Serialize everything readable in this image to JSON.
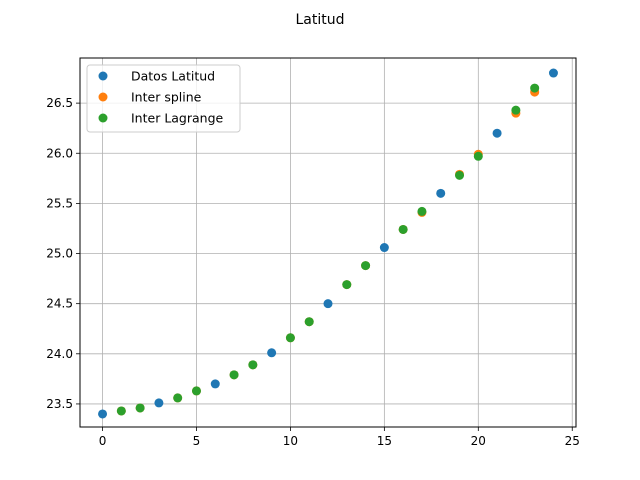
{
  "chart_data": {
    "type": "scatter",
    "title": "Latitud",
    "xlabel": "",
    "ylabel": "",
    "xlim": [
      -1.2,
      25.2
    ],
    "ylim": [
      23.27,
      26.95
    ],
    "xticks": [
      0,
      5,
      10,
      15,
      20,
      25
    ],
    "yticks": [
      23.5,
      24.0,
      24.5,
      25.0,
      25.5,
      26.0,
      26.5
    ],
    "ytick_labels": [
      "23.5",
      "24.0",
      "24.5",
      "25.0",
      "25.5",
      "26.0",
      "26.5"
    ],
    "grid": true,
    "legend_position": "top-left",
    "series": [
      {
        "name": "Datos Latitud",
        "color": "#1f77b4",
        "x": [
          0,
          3,
          6,
          9,
          12,
          15,
          18,
          21,
          24
        ],
        "y": [
          23.4,
          23.51,
          23.7,
          24.01,
          24.5,
          25.06,
          25.6,
          26.2,
          26.8
        ]
      },
      {
        "name": "Inter spline",
        "color": "#ff7f0e",
        "x": [
          1,
          2,
          4,
          5,
          7,
          8,
          10,
          11,
          13,
          14,
          16,
          17,
          19,
          20,
          22,
          23
        ],
        "y": [
          23.43,
          23.46,
          23.56,
          23.63,
          23.79,
          23.89,
          24.16,
          24.32,
          24.69,
          24.88,
          25.24,
          25.41,
          25.79,
          25.99,
          26.4,
          26.61
        ]
      },
      {
        "name": "Inter Lagrange",
        "color": "#2ca02c",
        "x": [
          1,
          2,
          4,
          5,
          7,
          8,
          10,
          11,
          13,
          14,
          16,
          17,
          19,
          20,
          22,
          23
        ],
        "y": [
          23.43,
          23.46,
          23.56,
          23.63,
          23.79,
          23.89,
          24.16,
          24.32,
          24.69,
          24.88,
          25.24,
          25.42,
          25.78,
          25.97,
          26.43,
          26.65
        ]
      }
    ]
  }
}
